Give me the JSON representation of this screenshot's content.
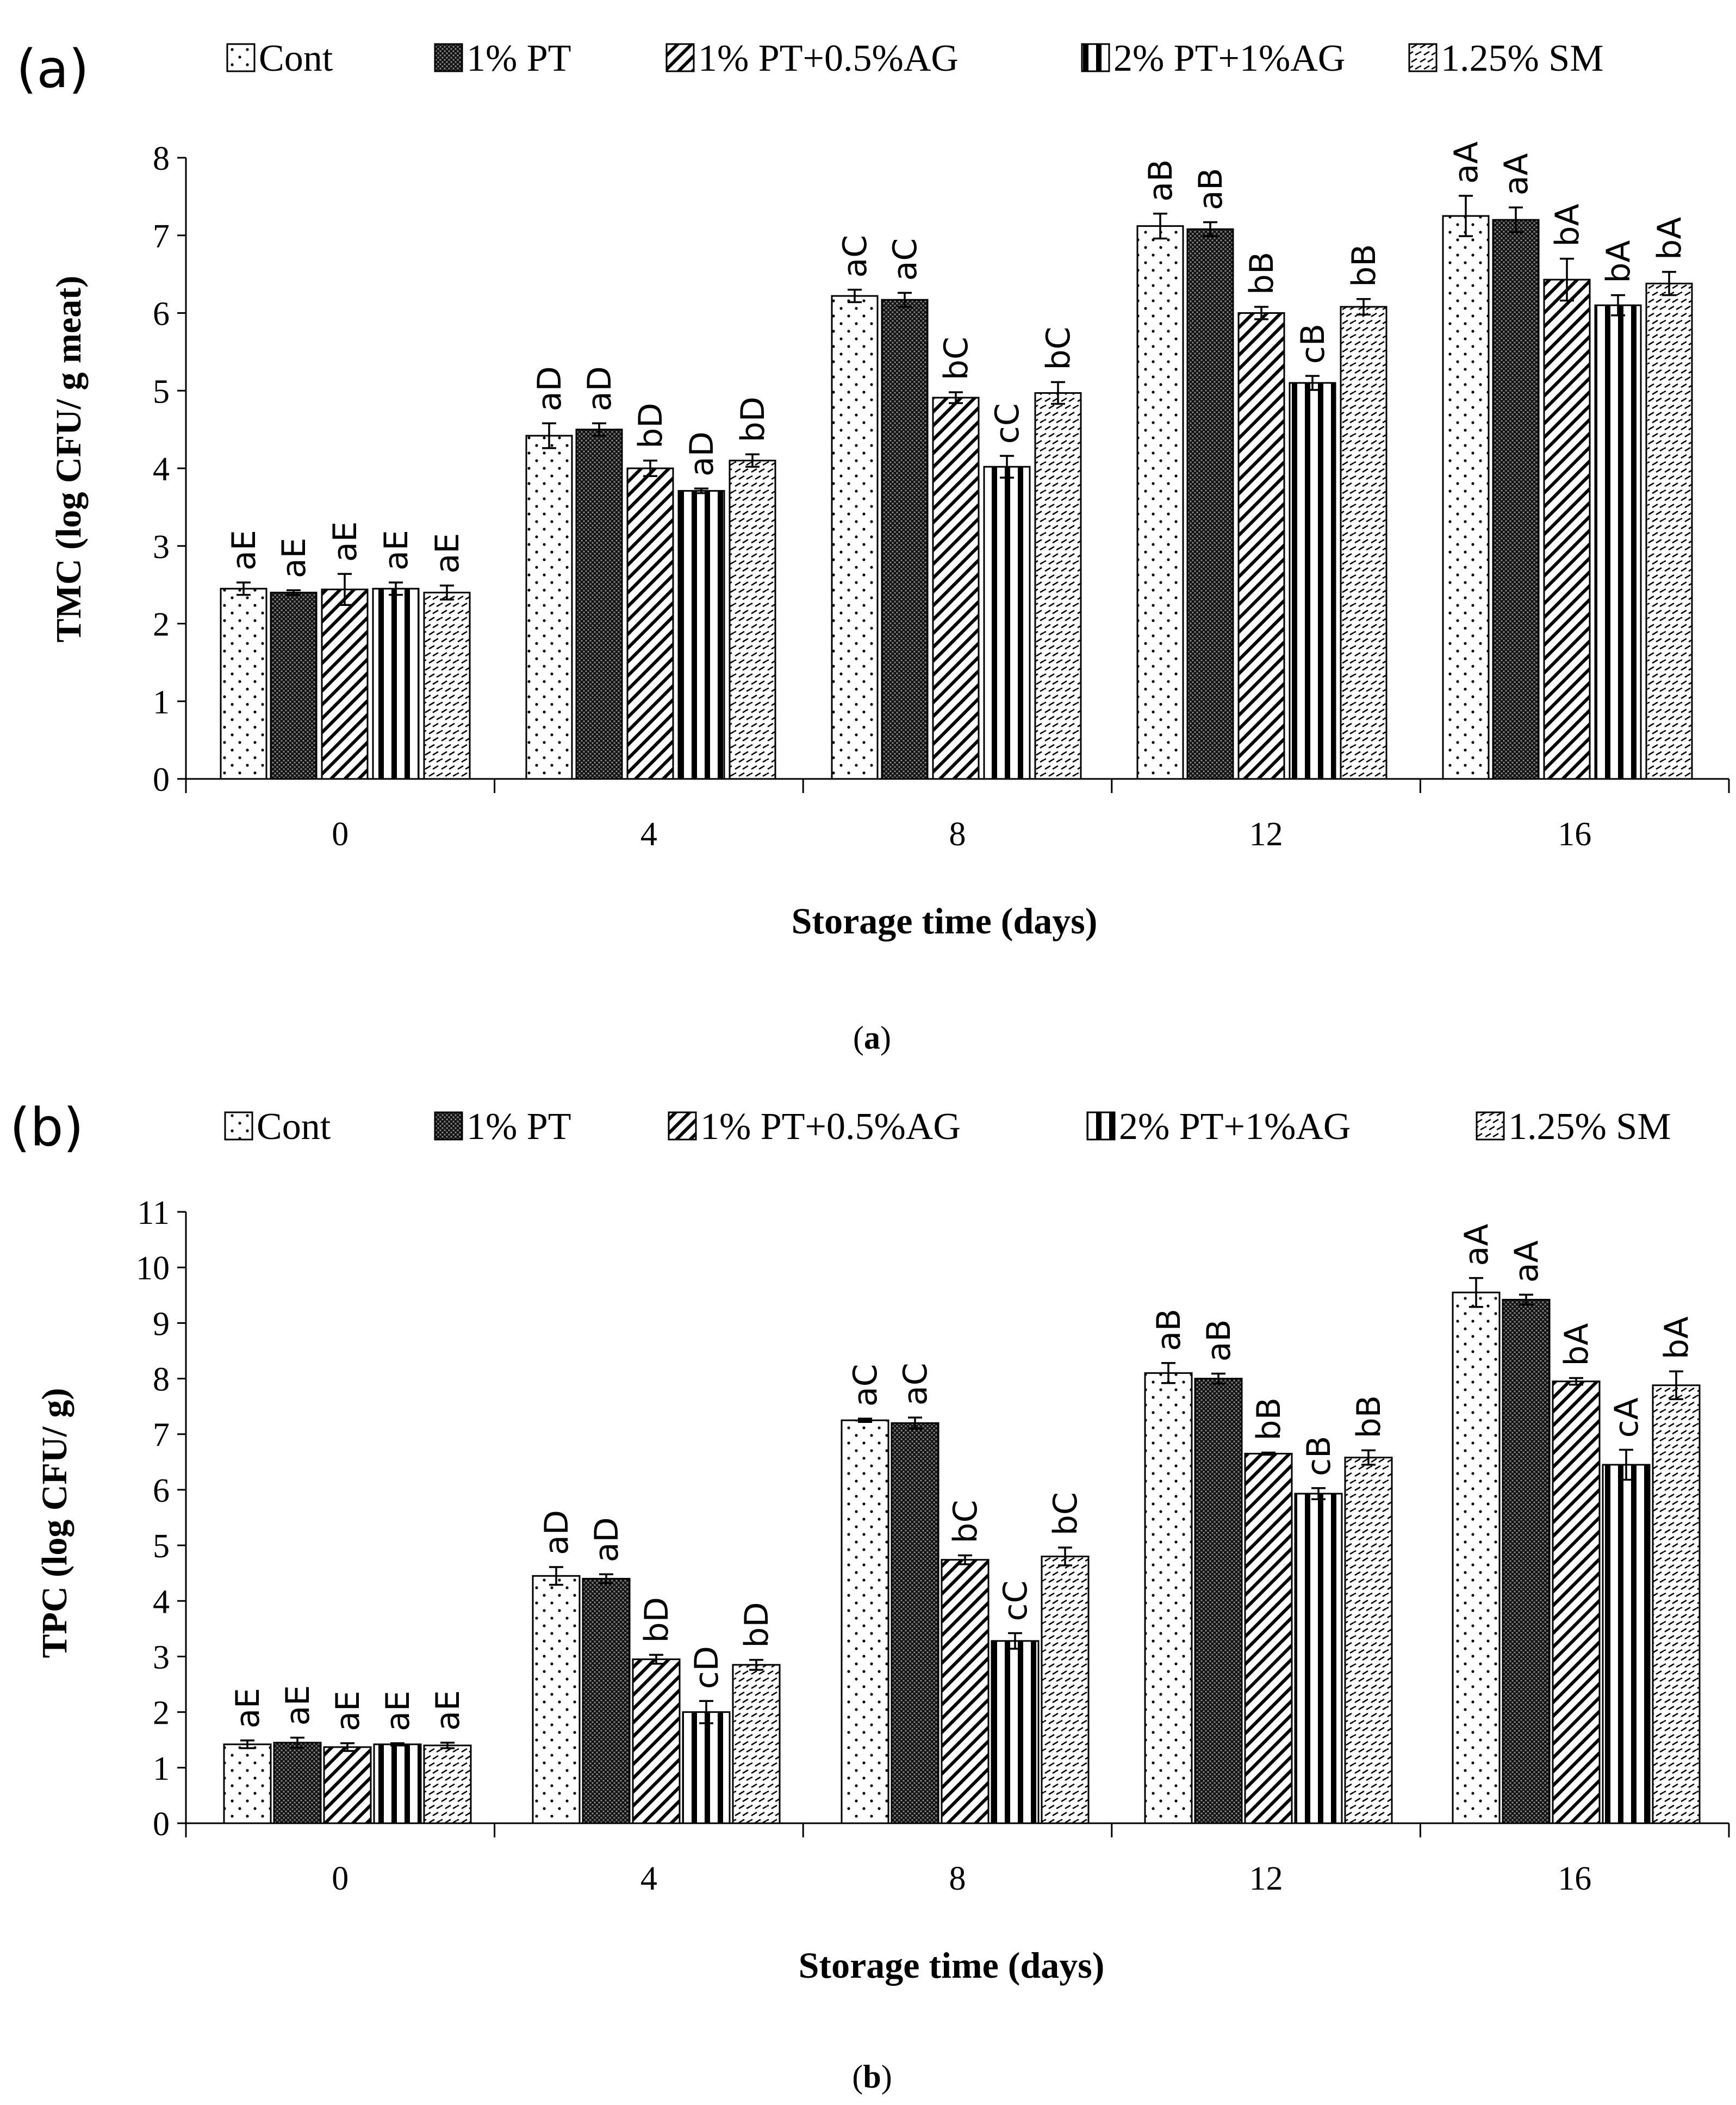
{
  "chart_data": [
    {
      "type": "bar",
      "panel_label": "(a)",
      "caption_open": "(",
      "caption": "a",
      "caption_close": ")",
      "title": "",
      "xlabel": "Storage time (days)",
      "ylabel": "TMC (log CFU/ g meat)",
      "categories": [
        "0",
        "4",
        "8",
        "12",
        "16"
      ],
      "ylim": [
        0,
        8
      ],
      "yticks": [
        "0",
        "1",
        "2",
        "3",
        "4",
        "5",
        "6",
        "7",
        "8"
      ],
      "grid": false,
      "legend_position": "top",
      "series": [
        {
          "name": "Cont",
          "values": [
            2.45,
            4.42,
            6.22,
            7.12,
            7.25
          ],
          "errors": [
            0.08,
            0.16,
            0.08,
            0.16,
            0.26
          ],
          "labels": [
            "aE",
            "aD",
            "aC",
            "aB",
            "aA"
          ]
        },
        {
          "name": "1% PT",
          "values": [
            2.4,
            4.5,
            6.17,
            7.08,
            7.2
          ],
          "errors": [
            0.03,
            0.08,
            0.09,
            0.09,
            0.16
          ],
          "labels": [
            "aE",
            "aD",
            "aC",
            "aB",
            "aA"
          ]
        },
        {
          "name": "1% PT+0.5%AG",
          "values": [
            2.44,
            4.0,
            4.91,
            6.0,
            6.43
          ],
          "errors": [
            0.2,
            0.1,
            0.07,
            0.08,
            0.27
          ],
          "labels": [
            "aE",
            "bD",
            "bC",
            "bB",
            "bA"
          ]
        },
        {
          "name": "2% PT+1%AG",
          "values": [
            2.45,
            3.71,
            4.02,
            5.1,
            6.1
          ],
          "errors": [
            0.08,
            0.03,
            0.14,
            0.09,
            0.13
          ],
          "labels": [
            "aE",
            "aD",
            "cC",
            "cB",
            "bA"
          ]
        },
        {
          "name": "1.25% SM",
          "values": [
            2.4,
            4.1,
            4.97,
            6.08,
            6.38
          ],
          "errors": [
            0.09,
            0.08,
            0.14,
            0.1,
            0.15
          ],
          "labels": [
            "aE",
            "bD",
            "bC",
            "bB",
            "bA"
          ]
        }
      ]
    },
    {
      "type": "bar",
      "panel_label": "(b)",
      "caption_open": "(",
      "caption": "b",
      "caption_close": ")",
      "title": "",
      "xlabel": "Storage time (days)",
      "ylabel": "TPC (log CFU/ g)",
      "categories": [
        "0",
        "4",
        "8",
        "12",
        "16"
      ],
      "ylim": [
        0,
        11
      ],
      "yticks": [
        "0",
        "1",
        "2",
        "3",
        "4",
        "5",
        "6",
        "7",
        "8",
        "9",
        "10",
        "11"
      ],
      "grid": false,
      "legend_position": "top",
      "series": [
        {
          "name": "Cont",
          "values": [
            1.42,
            4.45,
            7.25,
            8.1,
            9.55
          ],
          "errors": [
            0.07,
            0.16,
            0.03,
            0.18,
            0.26
          ],
          "labels": [
            "aE",
            "aD",
            "aC",
            "aB",
            "aA"
          ]
        },
        {
          "name": "1% PT",
          "values": [
            1.45,
            4.4,
            7.2,
            8.0,
            9.42
          ],
          "errors": [
            0.09,
            0.08,
            0.1,
            0.09,
            0.09
          ],
          "labels": [
            "aE",
            "aD",
            "aC",
            "aB",
            "aA"
          ]
        },
        {
          "name": "1% PT+0.5%AG",
          "values": [
            1.37,
            2.95,
            4.74,
            6.65,
            7.95
          ],
          "errors": [
            0.07,
            0.08,
            0.08,
            0.02,
            0.06
          ],
          "labels": [
            "aE",
            "bD",
            "bC",
            "bB",
            "bA"
          ]
        },
        {
          "name": "2% PT+1%AG",
          "values": [
            1.42,
            2.0,
            3.28,
            5.93,
            6.45
          ],
          "errors": [
            0.02,
            0.2,
            0.14,
            0.1,
            0.27
          ],
          "labels": [
            "aE",
            "cD",
            "cC",
            "cB",
            "cA"
          ]
        },
        {
          "name": "1.25% SM",
          "values": [
            1.4,
            2.85,
            4.8,
            6.58,
            7.88
          ],
          "errors": [
            0.05,
            0.09,
            0.16,
            0.13,
            0.25
          ],
          "labels": [
            "aE",
            "bD",
            "bC",
            "bB",
            "bA"
          ]
        }
      ]
    }
  ]
}
